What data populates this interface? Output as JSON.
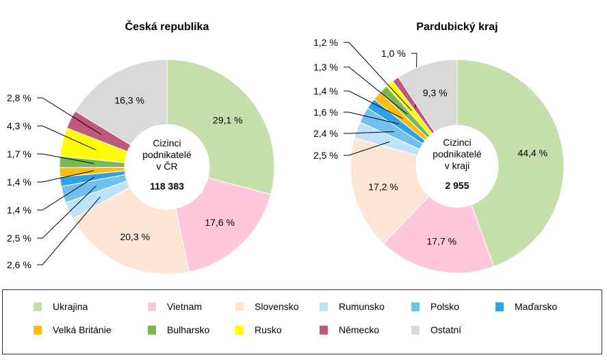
{
  "chart_data": [
    {
      "type": "pie",
      "title": "Česká republika",
      "center_text": [
        "Cizinci",
        "podnikatelé",
        "v ČR"
      ],
      "center_total": "118 383",
      "categories": [
        "Ukrajina",
        "Vietnam",
        "Slovensko",
        "Rumunsko",
        "Polsko",
        "Maďarsko",
        "Velká Británie",
        "Bulharsko",
        "Rusko",
        "Německo",
        "Ostatní"
      ],
      "values": [
        29.1,
        17.6,
        20.3,
        2.6,
        2.5,
        1.4,
        1.4,
        1.7,
        4.3,
        2.8,
        16.3
      ],
      "labels": [
        "29,1 %",
        "17,6 %",
        "20,3 %",
        "2,6 %",
        "2,5 %",
        "1,4 %",
        "1,4 %",
        "1,7 %",
        "4,3 %",
        "2,8 %",
        "16,3 %"
      ]
    },
    {
      "type": "pie",
      "title": "Pardubický kraj",
      "center_text": [
        "Cizinci",
        "podnikatelé",
        "v kraji"
      ],
      "center_total": "2 955",
      "categories": [
        "Ukrajina",
        "Vietnam",
        "Slovensko",
        "Rumunsko",
        "Polsko",
        "Maďarsko",
        "Velká Británie",
        "Bulharsko",
        "Rusko",
        "Německo",
        "Ostatní"
      ],
      "values": [
        44.4,
        17.7,
        17.2,
        2.5,
        2.4,
        1.6,
        1.4,
        1.3,
        1.2,
        1.0,
        9.3
      ],
      "labels": [
        "44,4 %",
        "17,7 %",
        "17,2 %",
        "2,5 %",
        "2,4 %",
        "1,6 %",
        "1,4 %",
        "1,3 %",
        "1,2 %",
        "1,0 %",
        "9,3 %"
      ]
    }
  ],
  "legend": {
    "position": "bottom",
    "items": [
      {
        "label": "Ukrajina",
        "color": "#c4dfaa"
      },
      {
        "label": "Vietnam",
        "color": "#ffc6dc"
      },
      {
        "label": "Slovensko",
        "color": "#fde6d6"
      },
      {
        "label": "Rumunsko",
        "color": "#bee3f8"
      },
      {
        "label": "Polsko",
        "color": "#70c1ef"
      },
      {
        "label": "Maďarsko",
        "color": "#2ea2e4"
      },
      {
        "label": "Velká Británie",
        "color": "#fbbd13"
      },
      {
        "label": "Bulharsko",
        "color": "#7ab857"
      },
      {
        "label": "Rusko",
        "color": "#ffff00"
      },
      {
        "label": "Německo",
        "color": "#c0587e"
      },
      {
        "label": "Ostatní",
        "color": "#d9d9d9"
      }
    ]
  }
}
